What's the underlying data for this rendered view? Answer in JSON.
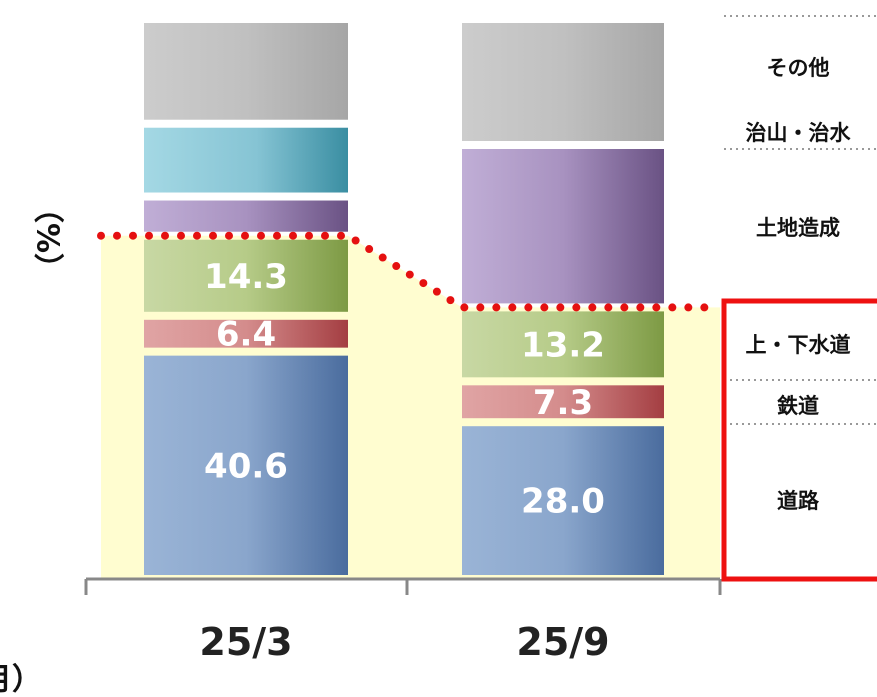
{
  "chart_data": {
    "type": "bar",
    "stacked": true,
    "categories": [
      "25/3",
      "25/9"
    ],
    "series": [
      {
        "name": "道路",
        "values": [
          40.6,
          28.0
        ],
        "value_labels": [
          "40.6",
          "28.0"
        ],
        "color": "#4a6fa5"
      },
      {
        "name": "鉄道",
        "values": [
          6.4,
          7.3
        ],
        "value_labels": [
          "6.4",
          "7.3"
        ],
        "color": "#b8444a"
      },
      {
        "name": "上・下水道",
        "values": [
          14.3,
          13.2
        ],
        "value_labels": [
          "14.3",
          "13.2"
        ],
        "color": "#7e9b45"
      },
      {
        "name": "土地造成",
        "values": [
          7.0,
          29.0
        ],
        "value_labels": [
          "",
          ""
        ],
        "color": "#755a8c"
      },
      {
        "name": "治山・治水",
        "values": [
          13.0,
          0.0
        ],
        "value_labels": [
          "",
          ""
        ],
        "color": "#3b95a8"
      },
      {
        "name": "その他",
        "values": [
          18.7,
          22.5
        ],
        "value_labels": [
          "",
          ""
        ],
        "color": "#a8a8a8"
      }
    ],
    "legend": [
      "その他",
      "治山・治水",
      "土地造成",
      "上・下水道",
      "鉄道",
      "道路"
    ],
    "highlight_totals": [
      61.3,
      48.5
    ],
    "ylabel": "（%）",
    "xlabel_fragment": "月）",
    "ylim": [
      0,
      100
    ],
    "grid": false
  }
}
